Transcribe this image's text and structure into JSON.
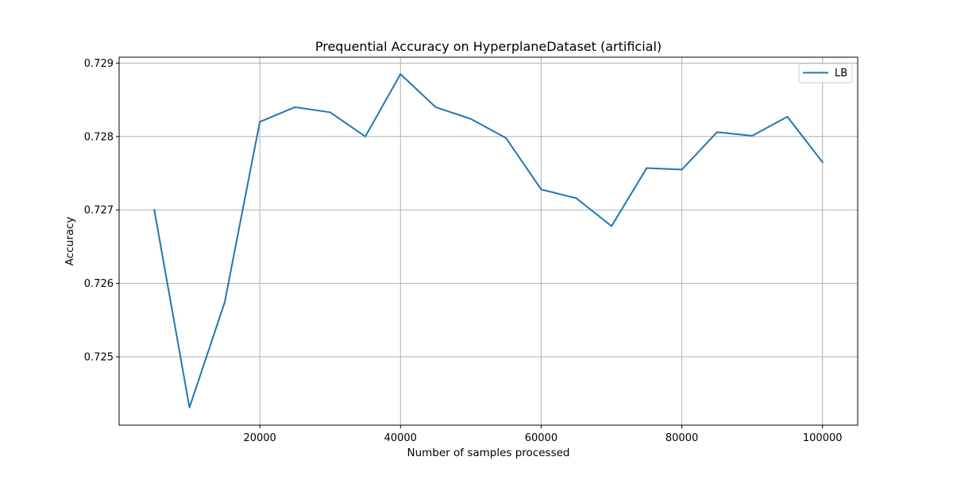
{
  "chart_data": {
    "type": "line",
    "title": "Prequential Accuracy on HyperplaneDataset (artificial)",
    "xlabel": "Number of samples processed",
    "ylabel": "Accuracy",
    "xlim": [
      0,
      105000
    ],
    "ylim": [
      0.72407,
      0.72908
    ],
    "x_ticks": [
      20000,
      40000,
      60000,
      80000,
      100000
    ],
    "x_tick_labels": [
      "20000",
      "40000",
      "60000",
      "80000",
      "100000"
    ],
    "y_ticks": [
      0.725,
      0.726,
      0.727,
      0.728,
      0.729
    ],
    "y_tick_labels": [
      "0.725",
      "0.726",
      "0.727",
      "0.728",
      "0.729"
    ],
    "grid": true,
    "legend_position": "upper right",
    "series": [
      {
        "name": "LB",
        "color": "#1f77b4",
        "x": [
          5000,
          10000,
          15000,
          20000,
          25000,
          30000,
          35000,
          40000,
          45000,
          50000,
          55000,
          60000,
          65000,
          70000,
          75000,
          80000,
          85000,
          90000,
          95000,
          100000
        ],
        "y": [
          0.727,
          0.72431,
          0.72574,
          0.7282,
          0.7284,
          0.72833,
          0.728,
          0.72885,
          0.7284,
          0.72824,
          0.72798,
          0.72728,
          0.72716,
          0.72678,
          0.72757,
          0.72755,
          0.72806,
          0.72801,
          0.72827,
          0.72765
        ]
      }
    ]
  }
}
